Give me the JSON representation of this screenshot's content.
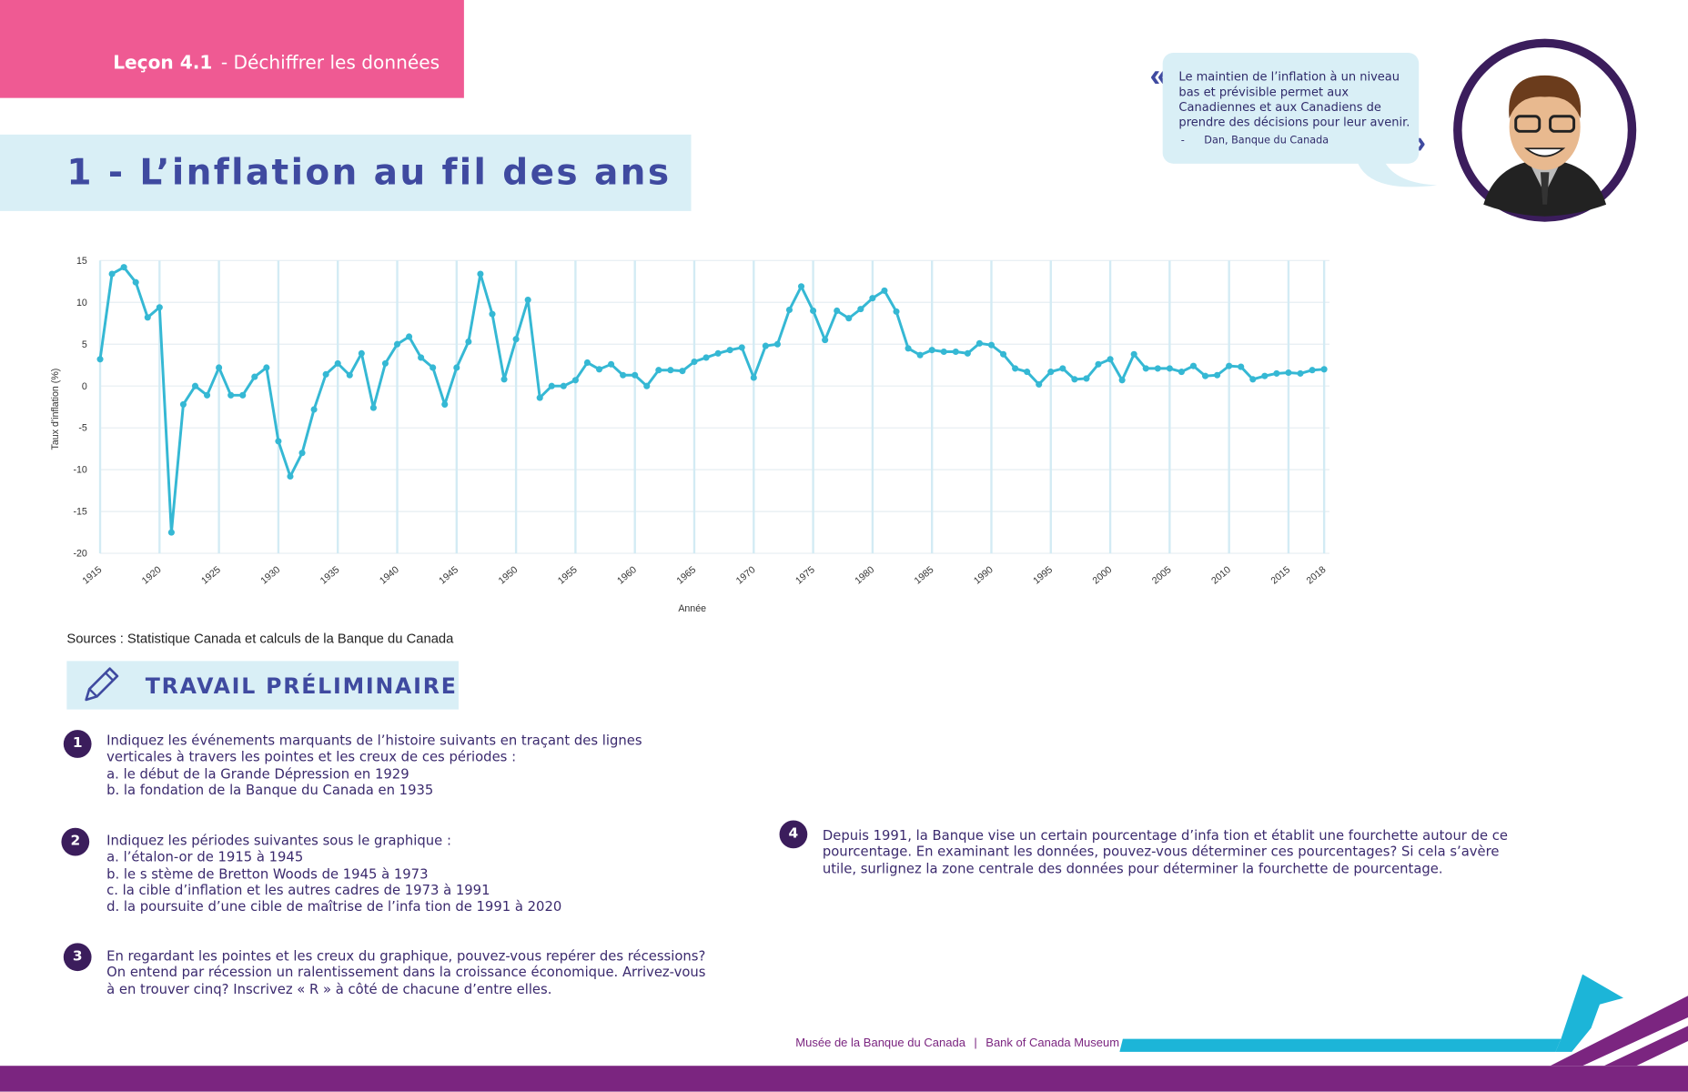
{
  "header": {
    "lesson": "Leçon 4.1",
    "subtitle": "- Déchiffrer les données"
  },
  "section_title": "1 - L’inflation au fil des ans",
  "quote": {
    "text": "Le maintien de l’inflation à un niveau bas et prévisible permet aux Canadiennes et aux Canadiens de prendre des décisions pour leur avenir.",
    "author": "-      Dan, Banque du Canada"
  },
  "chart_data": {
    "type": "line",
    "x_label": "Année",
    "y_label": "Taux d’inflation (%)",
    "x": [
      1915,
      1916,
      1917,
      1918,
      1919,
      1920,
      1921,
      1922,
      1923,
      1924,
      1925,
      1926,
      1927,
      1928,
      1929,
      1930,
      1931,
      1932,
      1933,
      1934,
      1935,
      1936,
      1937,
      1938,
      1939,
      1940,
      1941,
      1942,
      1943,
      1944,
      1945,
      1946,
      1947,
      1948,
      1949,
      1950,
      1951,
      1952,
      1953,
      1954,
      1955,
      1956,
      1957,
      1958,
      1959,
      1960,
      1961,
      1962,
      1963,
      1964,
      1965,
      1966,
      1967,
      1968,
      1969,
      1970,
      1971,
      1972,
      1973,
      1974,
      1975,
      1976,
      1977,
      1978,
      1979,
      1980,
      1981,
      1982,
      1983,
      1984,
      1985,
      1986,
      1987,
      1988,
      1989,
      1990,
      1991,
      1992,
      1993,
      1994,
      1995,
      1996,
      1997,
      1998,
      1999,
      2000,
      2001,
      2002,
      2003,
      2004,
      2005,
      2006,
      2007,
      2008,
      2009,
      2010,
      2011,
      2012,
      2013,
      2014,
      2015,
      2016,
      2017,
      2018
    ],
    "series": [
      {
        "color": "#35b8d4",
        "values": [
          3.2,
          13.4,
          14.2,
          12.4,
          8.2,
          9.4,
          -17.5,
          -2.2,
          0,
          -1.1,
          2.2,
          -1.1,
          -1.1,
          1.1,
          2.2,
          -6.6,
          -10.8,
          -8,
          -2.8,
          1.4,
          2.7,
          1.3,
          3.9,
          -2.6,
          2.7,
          5.0,
          5.9,
          3.4,
          2.2,
          -2.2,
          2.2,
          5.3,
          13.4,
          8.6,
          0.8,
          5.6,
          10.3,
          -1.4,
          0,
          0,
          0.7,
          2.8,
          2.0,
          2.6,
          1.3,
          1.3,
          0,
          1.9,
          1.9,
          1.8,
          2.9,
          3.4,
          3.9,
          4.3,
          4.6,
          1.0,
          4.8,
          5.0,
          9.1,
          11.9,
          9.0,
          5.5,
          9.0,
          8.1,
          9.2,
          10.5,
          11.4,
          8.9,
          4.5,
          3.7,
          4.3,
          4.1,
          4.1,
          3.9,
          5.1,
          4.9,
          3.8,
          2.1,
          1.7,
          0.2,
          1.7,
          2.1,
          0.8,
          0.9,
          2.6,
          3.2,
          0.7,
          3.8,
          2.1,
          2.1,
          2.1,
          1.7,
          2.4,
          1.2,
          1.3,
          2.4,
          2.3,
          0.8,
          1.2,
          1.5,
          1.6,
          1.5,
          1.9,
          2.0
        ]
      }
    ],
    "xlim": [
      1915,
      2018
    ],
    "ylim": [
      -20,
      15
    ],
    "xticks": [
      1915,
      1920,
      1925,
      1930,
      1935,
      1940,
      1945,
      1950,
      1955,
      1960,
      1965,
      1970,
      1975,
      1980,
      1985,
      1990,
      1995,
      2000,
      2005,
      2010,
      2015,
      2018
    ],
    "yticks": [
      -20,
      -15,
      -10,
      -5,
      0,
      5,
      10,
      15
    ],
    "grid": true
  },
  "source": "Sources : Statistique Canada et calculs de la Banque du Canada",
  "task_heading": "TRAVAIL PRÉLIMINAIRE",
  "tasks": [
    {
      "number": 1,
      "lines": [
        "Indiquez les événements marquants de l’histoire suivants en traçant des lignes verticales à travers les pointes et les creux de ces périodes :",
        "a. le début de la Grande Dépression en 1929",
        "b. la fondation de la Banque du Canada en 1935"
      ]
    },
    {
      "number": 2,
      "lines": [
        "Indiquez les périodes suivantes sous le graphique :",
        "a. l’étalon-or de 1915 à 1945",
        "b. le s stème de Bretton Woods de 1945 à 1973",
        "c. la cible d’inflation et les autres cadres de 1973 à 1991",
        "d. la poursuite d’une cible de maîtrise de l’infa tion de 1991 à 2020"
      ]
    },
    {
      "number": 3,
      "lines": [
        "En regardant les pointes et les creux du graphique, pouvez-vous repérer des récessions? On entend par récession un ralentissement dans la croissance économique. Arrivez-vous à en trouver cinq? Inscrivez « R » à côté de chacune d’entre elles."
      ]
    },
    {
      "number": 4,
      "lines": [
        "Depuis 1991, la Banque vise un certain pourcentage d’infa tion et établit une fourchette autour de ce pourcentage. En examinant les données, pouvez-vous déterminer ces pourcentages? Si cela s’avère utile, surlignez la zone centrale des données pour déterminer la fourchette de pourcentage."
      ]
    }
  ],
  "footer": {
    "museum_fr": "Musée de la Banque du Canada",
    "separator": "|",
    "museum_en": "Bank of Canada Museum"
  }
}
